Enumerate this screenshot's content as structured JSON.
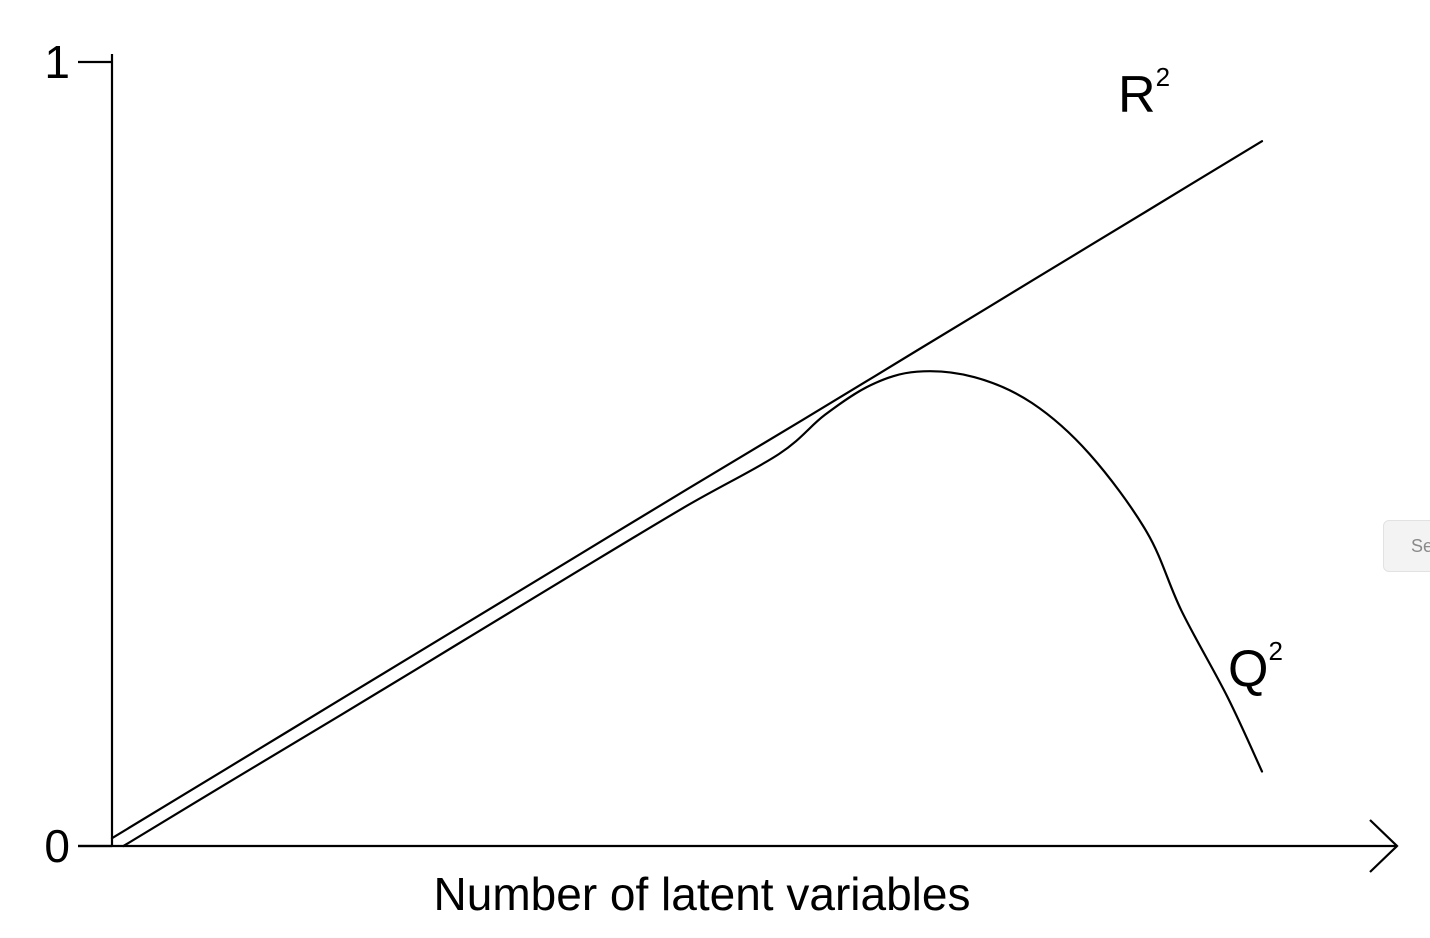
{
  "chart_data": {
    "type": "line",
    "xlabel": "Number of latent variables",
    "ylabel": "",
    "ylim": [
      0,
      1
    ],
    "xlim": [
      0,
      1
    ],
    "y_ticks": [
      "0",
      "1"
    ],
    "x_tick_labels_shown": false,
    "grid": false,
    "legend": "none",
    "x_arrow": true,
    "series": [
      {
        "name": "R²",
        "label_text": "R",
        "label_sup": "2",
        "color": "#000000",
        "x": [
          0.0,
          0.1,
          0.2,
          0.3,
          0.4,
          0.5,
          0.6,
          0.7,
          0.8,
          0.9,
          1.0
        ],
        "y": [
          0.01,
          0.099,
          0.188,
          0.277,
          0.366,
          0.455,
          0.543,
          0.632,
          0.721,
          0.81,
          0.899
        ]
      },
      {
        "name": "Q²",
        "label_text": "Q",
        "label_sup": "2",
        "color": "#000000",
        "x": [
          0.01,
          0.1,
          0.2,
          0.3,
          0.4,
          0.5,
          0.58,
          0.62,
          0.66,
          0.7,
          0.75,
          0.8,
          0.85,
          0.9,
          0.93,
          0.97,
          1.0
        ],
        "y": [
          0.0,
          0.08,
          0.168,
          0.257,
          0.346,
          0.434,
          0.5,
          0.55,
          0.588,
          0.605,
          0.598,
          0.565,
          0.5,
          0.4,
          0.3,
          0.19,
          0.095
        ]
      }
    ]
  },
  "side_tab": {
    "label": "Se"
  }
}
